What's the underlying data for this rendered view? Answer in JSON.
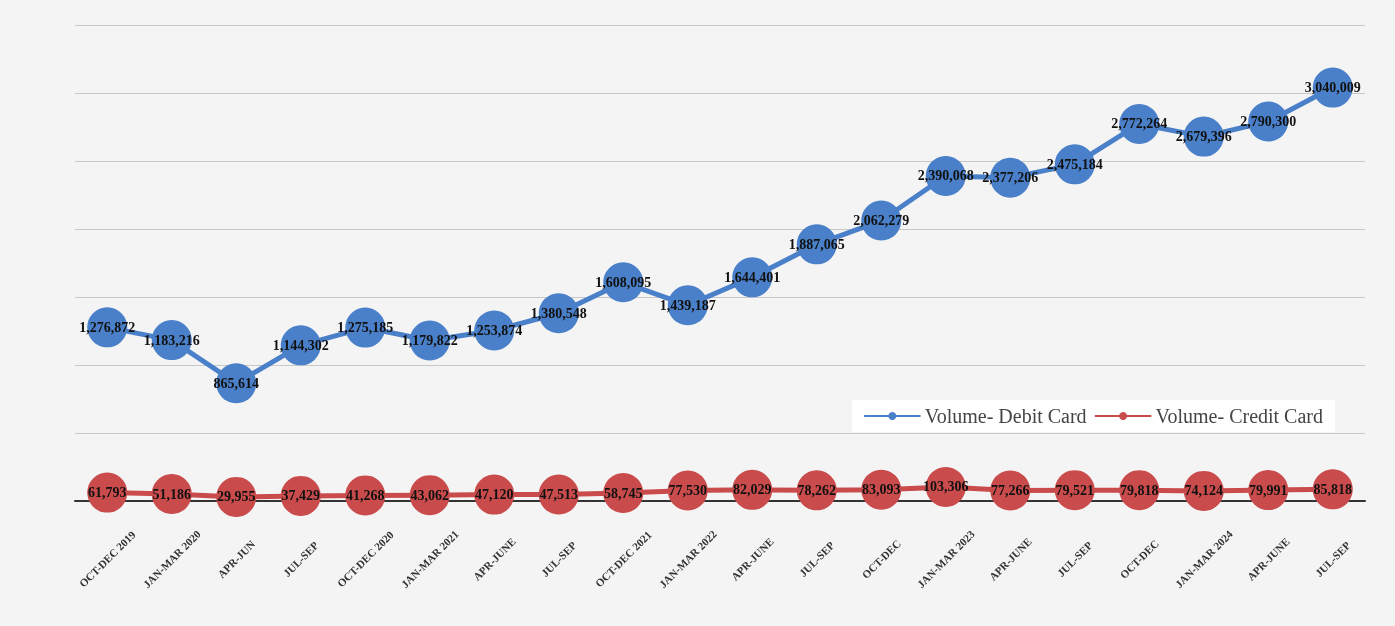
{
  "chart_data": {
    "type": "line",
    "categories": [
      "OCT-DEC 2019",
      "JAN-MAR 2020",
      "APR-JUN",
      "JUL-SEP",
      "OCT-DEC 2020",
      "JAN-MAR 2021",
      "APR-JUNE",
      "JUL-SEP",
      "OCT-DEC 2021",
      "JAN-MAR 2022",
      "APR-JUNE",
      "JUL-SEP",
      "OCT-DEC",
      "JAN-MAR 2023",
      "APR-JUNE",
      "JUL-SEP",
      "OCT-DEC",
      "JAN-MAR 2024",
      "APR-JUNE",
      "JUL-SEP"
    ],
    "series": [
      {
        "name": "Volume- Debit Card",
        "color": "#4a80c9",
        "values": [
          1276872,
          1183216,
          865614,
          1144302,
          1275185,
          1179822,
          1253874,
          1380548,
          1608095,
          1439187,
          1644401,
          1887065,
          2062279,
          2390068,
          2377206,
          2475184,
          2772264,
          2679396,
          2790300,
          3040009
        ],
        "value_labels": [
          "1,276,872",
          "1,183,216",
          "865,614",
          "1,144,302",
          "1,275,185",
          "1,179,822",
          "1,253,874",
          "1,380,548",
          "1,608,095",
          "1,439,187",
          "1,644,401",
          "1,887,065",
          "2,062,279",
          "2,390,068",
          "2,377,206",
          "2,475,184",
          "2,772,264",
          "2,679,396",
          "2,790,300",
          "3,040,009"
        ]
      },
      {
        "name": "Volume- Credit Card",
        "color": "#c94b4b",
        "values": [
          61793,
          51186,
          29955,
          37429,
          41268,
          43062,
          47120,
          47513,
          58745,
          77530,
          82029,
          78262,
          83093,
          103306,
          77266,
          79521,
          79818,
          74124,
          79991,
          85818
        ],
        "value_labels": [
          "61,793",
          "51,186",
          "29,955",
          "37,429",
          "41,268",
          "43,062",
          "47,120",
          "47,513",
          "58,745",
          "77,530",
          "82,029",
          "78,262",
          "83,093",
          "103,306",
          "77,266",
          "79,521",
          "79,818",
          "74,124",
          "79,991",
          "85,818"
        ]
      }
    ],
    "tick_labels": "x",
    "grid": "y",
    "legend": "right",
    "marker": "circle",
    "line_style": "solid"
  }
}
